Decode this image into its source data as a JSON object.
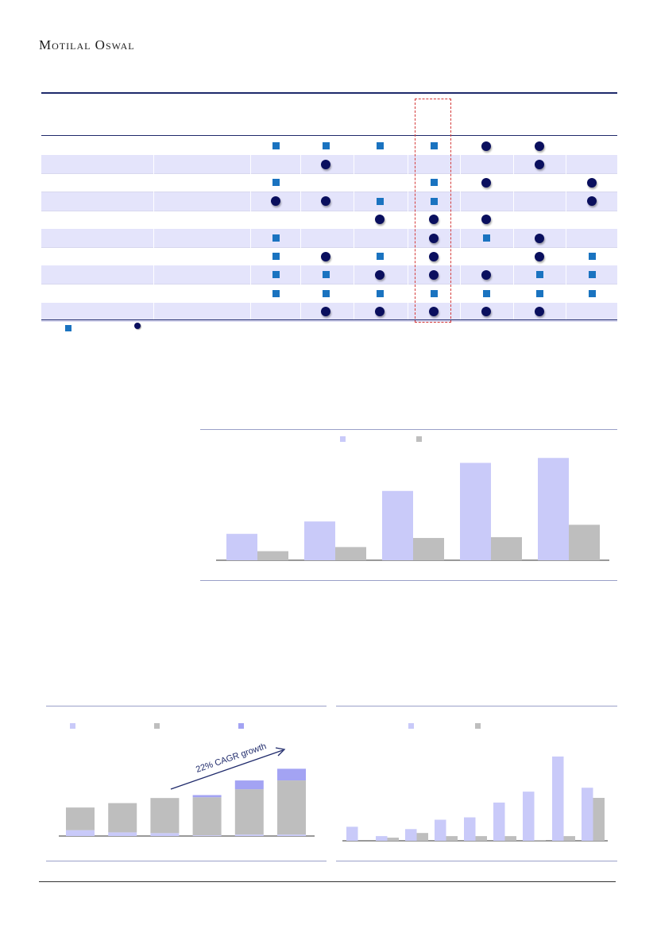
{
  "header": {
    "logo_text": "Motilal Oswal"
  },
  "matrix": {
    "markers": {
      "square_color": "#1a73c0",
      "circle_color": "#0a0f5e",
      "highlight_color": "#d43a3a"
    },
    "rows": [
      [
        "sq",
        "sq",
        "sq",
        "sq",
        "ci",
        "ci",
        ""
      ],
      [
        "",
        "ci",
        "",
        "",
        "",
        "ci",
        ""
      ],
      [
        "sq",
        "",
        "",
        "sq",
        "ci",
        "",
        "ci"
      ],
      [
        "ci",
        "ci",
        "sq",
        "sq",
        "",
        "",
        "ci"
      ],
      [
        "",
        "",
        "ci",
        "ci",
        "ci",
        "",
        ""
      ],
      [
        "sq",
        "",
        "",
        "ci",
        "sq",
        "ci",
        ""
      ],
      [
        "sq",
        "ci",
        "sq",
        "ci",
        "",
        "ci",
        "sq"
      ],
      [
        "sq",
        "sq",
        "ci",
        "ci",
        "ci",
        "sq",
        "sq"
      ],
      [
        "sq",
        "sq",
        "sq",
        "sq",
        "sq",
        "sq",
        "sq"
      ],
      [
        "",
        "ci",
        "ci",
        "ci",
        "ci",
        "ci",
        ""
      ]
    ]
  },
  "chart_data": [
    {
      "type": "bar",
      "series": [
        {
          "values": [
            32,
            47,
            84,
            118,
            124
          ],
          "color": "#c9caf9"
        },
        {
          "values": [
            11,
            16,
            27,
            28,
            43
          ],
          "color": "#bebebe"
        }
      ],
      "ylim": [
        0,
        130
      ],
      "grid": false,
      "legend": "top-center"
    },
    {
      "type": "bar",
      "stacked": true,
      "series": [
        {
          "values": [
            8,
            5,
            4,
            1,
            2,
            2
          ],
          "color": "#c9caf9"
        },
        {
          "values": [
            31,
            40,
            48,
            52,
            62,
            74
          ],
          "color": "#bebebe"
        },
        {
          "values": [
            0,
            0,
            0,
            3,
            12,
            16
          ],
          "color": "#a3a3f3"
        }
      ],
      "annotation": "22% CAGR growth",
      "ylim": [
        0,
        100
      ],
      "grid": false,
      "legend": "top-left"
    },
    {
      "type": "bar",
      "series": [
        {
          "values": [
            18,
            6,
            15,
            27,
            30,
            49,
            63,
            108,
            68
          ],
          "color": "#c9caf9"
        },
        {
          "values": [
            0,
            4,
            10,
            6,
            6,
            6,
            1,
            6,
            55
          ],
          "color": "#bebebe"
        }
      ],
      "ylim": [
        0,
        110
      ],
      "grid": false,
      "legend": "top-center"
    }
  ]
}
